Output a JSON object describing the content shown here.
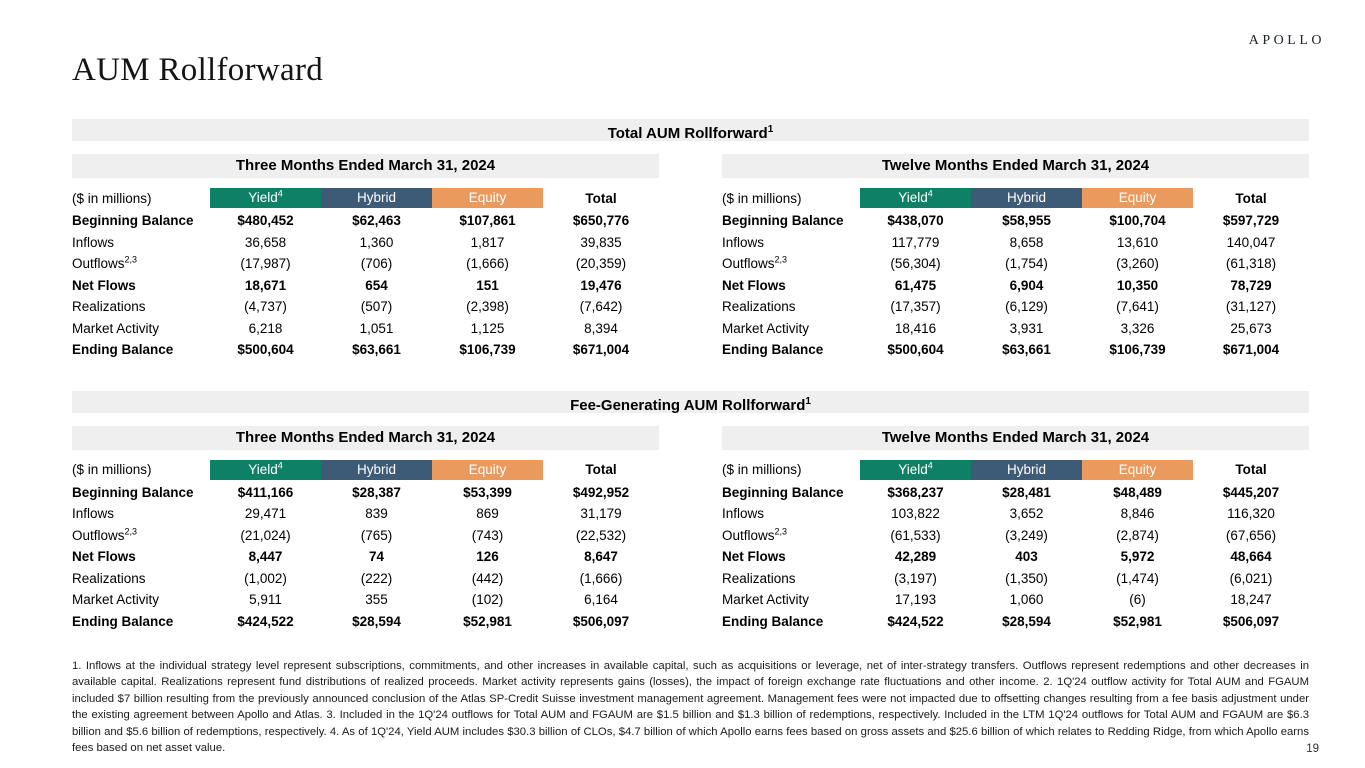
{
  "brand": {
    "logo": "APOLLO",
    "page_number": "19"
  },
  "page_title": "AUM Rollforward",
  "colors": {
    "yield": "#0E8065",
    "hybrid": "#3D5A77",
    "equity": "#EB9A5E",
    "band_bg": "#EFEFEF"
  },
  "sections": [
    {
      "title": "Total AUM Rollforward",
      "title_sup": "1",
      "tables": [
        {
          "period": "Three Months Ended March 31, 2024",
          "unit_label": "($ in millions)",
          "columns": [
            {
              "label": "Yield",
              "sup": "4",
              "color_key": "yield"
            },
            {
              "label": "Hybrid",
              "sup": "",
              "color_key": "hybrid"
            },
            {
              "label": "Equity",
              "sup": "",
              "color_key": "equity"
            },
            {
              "label": "Total",
              "sup": "",
              "color_key": "none"
            }
          ],
          "rows": [
            {
              "label": "Beginning Balance",
              "sup": "",
              "bold": true,
              "values": [
                "$480,452",
                "$62,463",
                "$107,861",
                "$650,776"
              ]
            },
            {
              "label": "Inflows",
              "sup": "",
              "bold": false,
              "values": [
                "36,658",
                "1,360",
                "1,817",
                "39,835"
              ]
            },
            {
              "label": "Outflows",
              "sup": "2,3",
              "bold": false,
              "values": [
                "(17,987)",
                "(706)",
                "(1,666)",
                "(20,359)"
              ]
            },
            {
              "label": "Net Flows",
              "sup": "",
              "bold": true,
              "values": [
                "18,671",
                "654",
                "151",
                "19,476"
              ]
            },
            {
              "label": "Realizations",
              "sup": "",
              "bold": false,
              "values": [
                "(4,737)",
                "(507)",
                "(2,398)",
                "(7,642)"
              ]
            },
            {
              "label": "Market Activity",
              "sup": "",
              "bold": false,
              "values": [
                "6,218",
                "1,051",
                "1,125",
                "8,394"
              ]
            },
            {
              "label": "Ending Balance",
              "sup": "",
              "bold": true,
              "values": [
                "$500,604",
                "$63,661",
                "$106,739",
                "$671,004"
              ]
            }
          ]
        },
        {
          "period": "Twelve Months Ended March 31, 2024",
          "unit_label": "($ in millions)",
          "columns": [
            {
              "label": "Yield",
              "sup": "4",
              "color_key": "yield"
            },
            {
              "label": "Hybrid",
              "sup": "",
              "color_key": "hybrid"
            },
            {
              "label": "Equity",
              "sup": "",
              "color_key": "equity"
            },
            {
              "label": "Total",
              "sup": "",
              "color_key": "none"
            }
          ],
          "rows": [
            {
              "label": "Beginning Balance",
              "sup": "",
              "bold": true,
              "values": [
                "$438,070",
                "$58,955",
                "$100,704",
                "$597,729"
              ]
            },
            {
              "label": "Inflows",
              "sup": "",
              "bold": false,
              "values": [
                "117,779",
                "8,658",
                "13,610",
                "140,047"
              ]
            },
            {
              "label": "Outflows",
              "sup": "2,3",
              "bold": false,
              "values": [
                "(56,304)",
                "(1,754)",
                "(3,260)",
                "(61,318)"
              ]
            },
            {
              "label": "Net Flows",
              "sup": "",
              "bold": true,
              "values": [
                "61,475",
                "6,904",
                "10,350",
                "78,729"
              ]
            },
            {
              "label": "Realizations",
              "sup": "",
              "bold": false,
              "values": [
                "(17,357)",
                "(6,129)",
                "(7,641)",
                "(31,127)"
              ]
            },
            {
              "label": "Market Activity",
              "sup": "",
              "bold": false,
              "values": [
                "18,416",
                "3,931",
                "3,326",
                "25,673"
              ]
            },
            {
              "label": "Ending Balance",
              "sup": "",
              "bold": true,
              "values": [
                "$500,604",
                "$63,661",
                "$106,739",
                "$671,004"
              ]
            }
          ]
        }
      ]
    },
    {
      "title": "Fee-Generating AUM Rollforward",
      "title_sup": "1",
      "tables": [
        {
          "period": "Three Months Ended March 31, 2024",
          "unit_label": "($ in millions)",
          "columns": [
            {
              "label": "Yield",
              "sup": "4",
              "color_key": "yield"
            },
            {
              "label": "Hybrid",
              "sup": "",
              "color_key": "hybrid"
            },
            {
              "label": "Equity",
              "sup": "",
              "color_key": "equity"
            },
            {
              "label": "Total",
              "sup": "",
              "color_key": "none"
            }
          ],
          "rows": [
            {
              "label": "Beginning Balance",
              "sup": "",
              "bold": true,
              "values": [
                "$411,166",
                "$28,387",
                "$53,399",
                "$492,952"
              ]
            },
            {
              "label": "Inflows",
              "sup": "",
              "bold": false,
              "values": [
                "29,471",
                "839",
                "869",
                "31,179"
              ]
            },
            {
              "label": "Outflows",
              "sup": "2,3",
              "bold": false,
              "values": [
                "(21,024)",
                "(765)",
                "(743)",
                "(22,532)"
              ]
            },
            {
              "label": "Net Flows",
              "sup": "",
              "bold": true,
              "values": [
                "8,447",
                "74",
                "126",
                "8,647"
              ]
            },
            {
              "label": "Realizations",
              "sup": "",
              "bold": false,
              "values": [
                "(1,002)",
                "(222)",
                "(442)",
                "(1,666)"
              ]
            },
            {
              "label": "Market Activity",
              "sup": "",
              "bold": false,
              "values": [
                "5,911",
                "355",
                "(102)",
                "6,164"
              ]
            },
            {
              "label": "Ending Balance",
              "sup": "",
              "bold": true,
              "values": [
                "$424,522",
                "$28,594",
                "$52,981",
                "$506,097"
              ]
            }
          ]
        },
        {
          "period": "Twelve Months Ended March 31, 2024",
          "unit_label": "($ in millions)",
          "columns": [
            {
              "label": "Yield",
              "sup": "4",
              "color_key": "yield"
            },
            {
              "label": "Hybrid",
              "sup": "",
              "color_key": "hybrid"
            },
            {
              "label": "Equity",
              "sup": "",
              "color_key": "equity"
            },
            {
              "label": "Total",
              "sup": "",
              "color_key": "none"
            }
          ],
          "rows": [
            {
              "label": "Beginning Balance",
              "sup": "",
              "bold": true,
              "values": [
                "$368,237",
                "$28,481",
                "$48,489",
                "$445,207"
              ]
            },
            {
              "label": "Inflows",
              "sup": "",
              "bold": false,
              "values": [
                "103,822",
                "3,652",
                "8,846",
                "116,320"
              ]
            },
            {
              "label": "Outflows",
              "sup": "2,3",
              "bold": false,
              "values": [
                "(61,533)",
                "(3,249)",
                "(2,874)",
                "(67,656)"
              ]
            },
            {
              "label": "Net Flows",
              "sup": "",
              "bold": true,
              "values": [
                "42,289",
                "403",
                "5,972",
                "48,664"
              ]
            },
            {
              "label": "Realizations",
              "sup": "",
              "bold": false,
              "values": [
                "(3,197)",
                "(1,350)",
                "(1,474)",
                "(6,021)"
              ]
            },
            {
              "label": "Market Activity",
              "sup": "",
              "bold": false,
              "values": [
                "17,193",
                "1,060",
                "(6)",
                "18,247"
              ]
            },
            {
              "label": "Ending Balance",
              "sup": "",
              "bold": true,
              "values": [
                "$424,522",
                "$28,594",
                "$52,981",
                "$506,097"
              ]
            }
          ]
        }
      ]
    }
  ],
  "footnotes": "1. Inflows at the individual strategy level represent subscriptions, commitments, and other increases in available capital, such as acquisitions or leverage, net of inter-strategy transfers. Outflows represent redemptions and other decreases in available capital. Realizations represent fund distributions of realized proceeds. Market activity represents gains (losses), the impact of foreign exchange rate fluctuations and other income. 2. 1Q'24 outflow activity for Total AUM and FGAUM included $7 billion resulting from the previously announced conclusion of the Atlas SP-Credit Suisse investment management agreement. Management fees were not impacted due to offsetting changes resulting from a fee basis adjustment under the existing agreement between Apollo and Atlas. 3. Included in the 1Q'24 outflows for Total AUM and FGAUM are $1.5 billion and $1.3 billion of redemptions, respectively. Included in the LTM 1Q'24 outflows for Total AUM and FGAUM are $6.3 billion and $5.6 billion of redemptions, respectively. 4. As of 1Q'24, Yield AUM includes $30.3 billion of CLOs, $4.7 billion of which Apollo earns fees based on gross assets and $25.6 billion of which relates to Redding Ridge, from which Apollo earns fees based on net asset value.",
  "footnotes_name": "footnotes"
}
